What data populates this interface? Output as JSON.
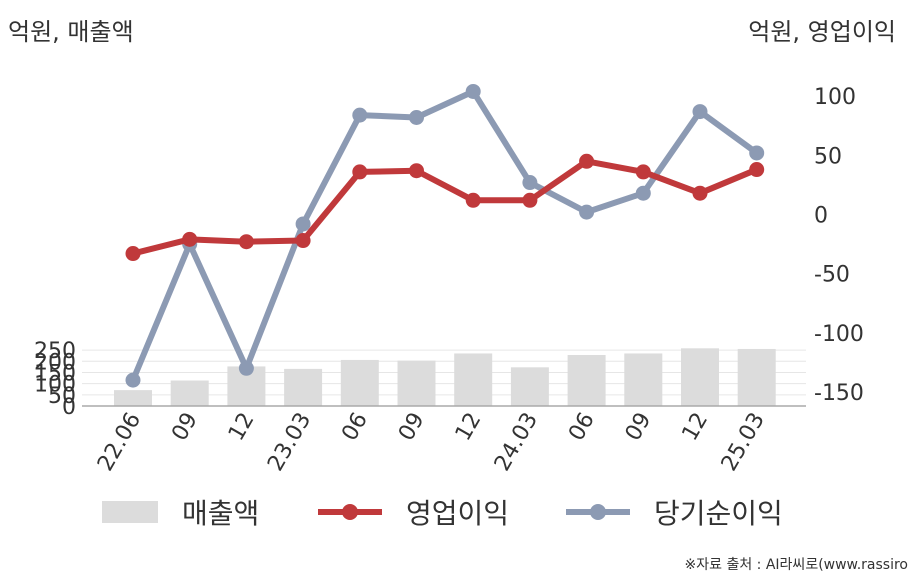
{
  "chart_data": {
    "type": "bar+line",
    "left_axis_label": "억원, 매출액",
    "right_axis_label": "억원, 영업이익",
    "categories": [
      "22.06",
      "09",
      "12",
      "23.03",
      "06",
      "09",
      "12",
      "24.03",
      "06",
      "09",
      "12",
      "25.03"
    ],
    "series": [
      {
        "name": "매출액",
        "type": "bar",
        "axis": "left",
        "color": "#dcdcdc",
        "values": [
          71,
          114,
          177,
          166,
          206,
          203,
          235,
          173,
          228,
          235,
          258,
          255
        ]
      },
      {
        "name": "영업이익",
        "type": "line",
        "axis": "right",
        "color": "#c0393b",
        "values": [
          -33,
          -21,
          -23,
          -22,
          36,
          37,
          12,
          12,
          45,
          36,
          18,
          38
        ]
      },
      {
        "name": "당기순이익",
        "type": "line",
        "axis": "right",
        "color": "#8c9ab3",
        "values": [
          -140,
          -25,
          -130,
          -8,
          84,
          82,
          104,
          27,
          2,
          18,
          87,
          52
        ]
      }
    ],
    "left_axis": {
      "min": 0,
      "max": 280,
      "ticks": [
        0,
        50,
        100,
        150,
        200,
        250
      ]
    },
    "right_axis": {
      "min": -162,
      "max": 100,
      "ticks": [
        -150,
        -100,
        -50,
        0,
        50,
        100
      ]
    },
    "grid": true,
    "legend_position": "bottom"
  },
  "legend": [
    "매출액",
    "영업이익",
    "당기순이익"
  ],
  "source": "※자료 출처 : AI라씨로(www.rassiro"
}
